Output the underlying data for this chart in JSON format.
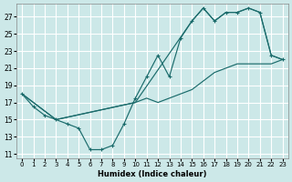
{
  "xlabel": "Humidex (Indice chaleur)",
  "bg_color": "#cce8e8",
  "grid_color": "#ffffff",
  "line_color": "#1a6b6b",
  "xlim": [
    -0.5,
    23.5
  ],
  "ylim": [
    10.5,
    28.5
  ],
  "xticks": [
    0,
    1,
    2,
    3,
    4,
    5,
    6,
    7,
    8,
    9,
    10,
    11,
    12,
    13,
    14,
    15,
    16,
    17,
    18,
    19,
    20,
    21,
    22,
    23
  ],
  "yticks": [
    11,
    13,
    15,
    17,
    19,
    21,
    23,
    25,
    27
  ],
  "line1_x": [
    0,
    1,
    2,
    3,
    4,
    5,
    6,
    7,
    8,
    9,
    10,
    11,
    12,
    13,
    14,
    15,
    16,
    17,
    18,
    19,
    20,
    21,
    22,
    23
  ],
  "line1_y": [
    18,
    16.5,
    15.5,
    15.0,
    14.5,
    14.0,
    11.5,
    11.5,
    12.0,
    14.5,
    17.5,
    20.0,
    22.5,
    20.0,
    24.5,
    26.5,
    28.0,
    26.5,
    27.5,
    27.5,
    28.0,
    27.5,
    22.5,
    22.0
  ],
  "line2_x": [
    0,
    3,
    10,
    11,
    12,
    13,
    14,
    15,
    16,
    17,
    18,
    19,
    20,
    21,
    22,
    23
  ],
  "line2_y": [
    18,
    15.0,
    17.0,
    17.5,
    17.0,
    17.5,
    18.0,
    18.5,
    19.5,
    20.5,
    21.0,
    21.5,
    21.5,
    21.5,
    21.5,
    22.0
  ],
  "line3_x": [
    0,
    3,
    10,
    15,
    16,
    17,
    18,
    19,
    20,
    21,
    22,
    23
  ],
  "line3_y": [
    18,
    15.0,
    17.0,
    26.5,
    28.0,
    26.5,
    27.5,
    27.5,
    28.0,
    27.5,
    22.5,
    22.0
  ]
}
